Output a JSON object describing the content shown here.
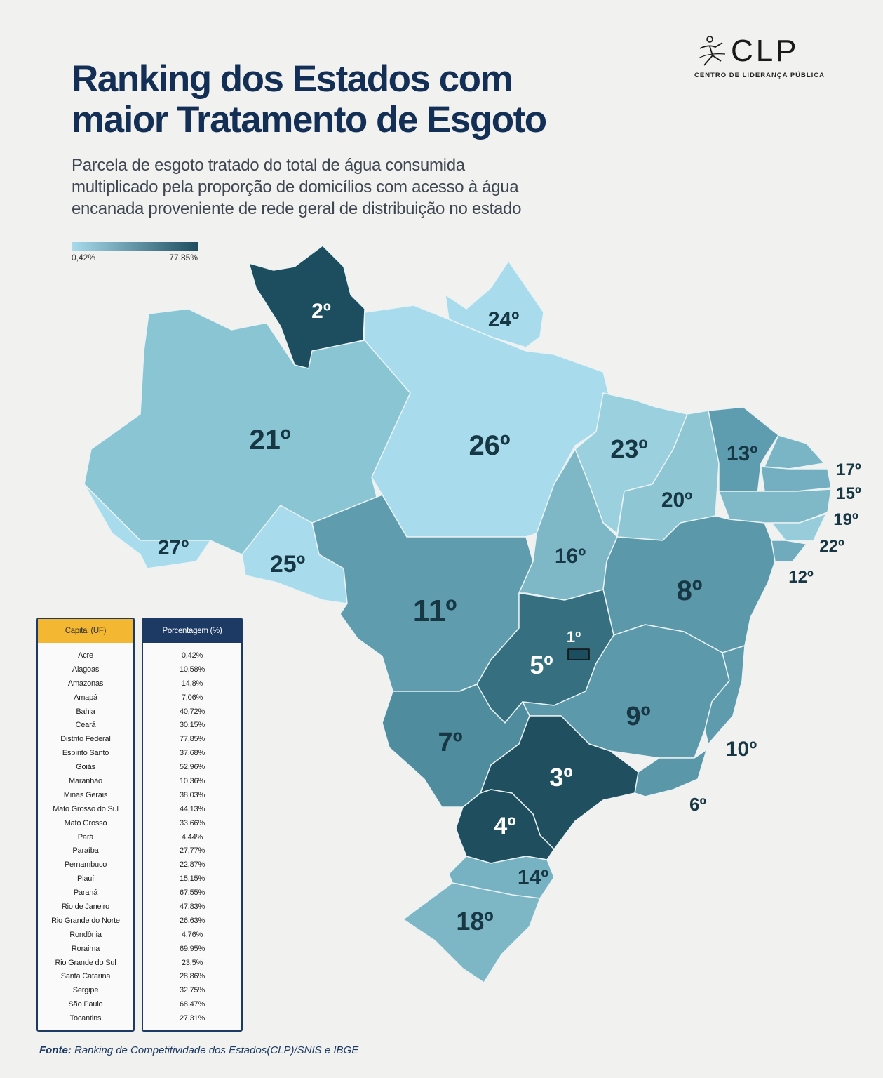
{
  "logo": {
    "brand": "CLP",
    "tagline": "CENTRO DE LIDERANÇA PÚBLICA"
  },
  "header": {
    "title_line1": "Ranking dos Estados com",
    "title_line2": "maior Tratamento de Esgoto",
    "subtitle_line1": "Parcela de esgoto tratado do total de água consumida",
    "subtitle_line2": "multiplicado pela proporção de domicílios com acesso à água",
    "subtitle_line3": "encanada proveniente de rede geral de distribuição no estado"
  },
  "legend": {
    "min_label": "0,42%",
    "max_label": "77,85%",
    "color_low": "#a8dcec",
    "color_high": "#1d4e5f"
  },
  "ranks": {
    "RR": "2º",
    "AP": "24º",
    "AM": "21º",
    "PA": "26º",
    "MA": "23º",
    "CE": "13º",
    "RN": "17º",
    "PB": "15º",
    "PE": "19º",
    "AL": "22º",
    "SE": "12º",
    "PI": "20º",
    "AC": "27º",
    "RO": "25º",
    "TO": "16º",
    "BA": "8º",
    "MT": "11º",
    "DF": "1º",
    "GO": "5º",
    "MG": "9º",
    "ES": "10º",
    "MS": "7º",
    "SP": "3º",
    "RJ": "6º",
    "PR": "4º",
    "SC": "14º",
    "RS": "18º"
  },
  "colors": {
    "RR": "#1d4e5f",
    "AP": "#a8dcec",
    "AM": "#8ac5d4",
    "PA": "#a8dcec",
    "MA": "#9bd0de",
    "CE": "#5e9caf",
    "RN": "#7ab5c5",
    "PB": "#73afc0",
    "PE": "#7fb9c8",
    "AL": "#97cddb",
    "SE": "#6fabbc",
    "PI": "#8ec6d4",
    "AC": "#a8dcec",
    "RO": "#a8dcec",
    "TO": "#7eb7c6",
    "BA": "#5b98aa",
    "MT": "#5f9cae",
    "DF": "#1d4e5f",
    "GO": "#356f80",
    "MG": "#5c99ab",
    "ES": "#5e9bad",
    "MS": "#4f8c9e",
    "SP": "#204f60",
    "RJ": "#5a97a9",
    "PR": "#1f4e5f",
    "SC": "#77b2c2",
    "RS": "#7db7c6"
  },
  "table": {
    "capital_header": "Capital (UF)",
    "percent_header": "Porcentagem (%)",
    "rows": [
      {
        "state": "Acre",
        "pct": "0,42%"
      },
      {
        "state": "Alagoas",
        "pct": "10,58%"
      },
      {
        "state": "Amazonas",
        "pct": "14,8%"
      },
      {
        "state": "Amapá",
        "pct": "7,06%"
      },
      {
        "state": "Bahia",
        "pct": "40,72%"
      },
      {
        "state": "Ceará",
        "pct": "30,15%"
      },
      {
        "state": "Distrito Federal",
        "pct": "77,85%"
      },
      {
        "state": "Espírito Santo",
        "pct": "37,68%"
      },
      {
        "state": "Goiás",
        "pct": "52,96%"
      },
      {
        "state": "Maranhão",
        "pct": "10,36%"
      },
      {
        "state": "Minas Gerais",
        "pct": "38,03%"
      },
      {
        "state": "Mato Grosso do Sul",
        "pct": "44,13%"
      },
      {
        "state": "Mato Grosso",
        "pct": "33,66%"
      },
      {
        "state": "Pará",
        "pct": "4,44%"
      },
      {
        "state": "Paraíba",
        "pct": "27,77%"
      },
      {
        "state": "Pernambuco",
        "pct": "22,87%"
      },
      {
        "state": "Piauí",
        "pct": "15,15%"
      },
      {
        "state": "Paraná",
        "pct": "67,55%"
      },
      {
        "state": "Rio de Janeiro",
        "pct": "47,83%"
      },
      {
        "state": "Rio Grande do Norte",
        "pct": "26,63%"
      },
      {
        "state": "Rondônia",
        "pct": "4,76%"
      },
      {
        "state": "Roraima",
        "pct": "69,95%"
      },
      {
        "state": "Rio Grande do Sul",
        "pct": "23,5%"
      },
      {
        "state": "Santa Catarina",
        "pct": "28,86%"
      },
      {
        "state": "Sergipe",
        "pct": "32,75%"
      },
      {
        "state": "São Paulo",
        "pct": "68,47%"
      },
      {
        "state": "Tocantins",
        "pct": "27,31%"
      }
    ]
  },
  "source": {
    "label": "Fonte:",
    "text": "Ranking de Competitividade dos  Estados(CLP)/SNIS e IBGE"
  }
}
